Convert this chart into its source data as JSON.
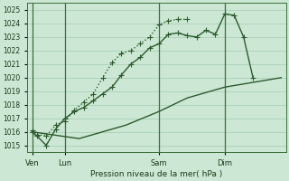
{
  "xlabel": "Pression niveau de la mer( hPa )",
  "ylim": [
    1014.5,
    1025.5
  ],
  "yticks": [
    1015,
    1016,
    1017,
    1018,
    1019,
    1020,
    1021,
    1022,
    1023,
    1024,
    1025
  ],
  "background_color": "#cce8d4",
  "grid_color": "#aacfb8",
  "line_color": "#2d5a2d",
  "vline_color": "#3a6e3a",
  "xtick_labels": [
    "Ven",
    "Lun",
    "Sam",
    "Dim"
  ],
  "xtick_positions": [
    0,
    3.5,
    13.5,
    20.5
  ],
  "xlim": [
    -0.5,
    27.0
  ],
  "line1_x": [
    0,
    0.5,
    1.5,
    2.5,
    3.5,
    4.5,
    5.5,
    6.5,
    7.5,
    8.5,
    9.5,
    10.5,
    11.5,
    12.5,
    13.5,
    14.5,
    15.5,
    16.5
  ],
  "line1_y": [
    1016.1,
    1015.8,
    1015.7,
    1016.5,
    1016.8,
    1017.6,
    1018.2,
    1018.8,
    1020.0,
    1021.1,
    1021.8,
    1022.0,
    1022.5,
    1023.0,
    1023.9,
    1024.2,
    1024.3,
    1024.3
  ],
  "line2_x": [
    0,
    0.5,
    1.5,
    2.5,
    3.5,
    4.5,
    5.5,
    6.5,
    7.5,
    8.5,
    9.5,
    10.5,
    11.5,
    12.5,
    13.5,
    14.5,
    15.5,
    16.5,
    17.5,
    18.5,
    19.5,
    20.5,
    21.5,
    22.5,
    23.5
  ],
  "line2_y": [
    1016.0,
    1015.7,
    1015.0,
    1016.2,
    1017.0,
    1017.5,
    1017.8,
    1018.3,
    1018.8,
    1019.3,
    1020.2,
    1021.0,
    1021.5,
    1022.2,
    1022.5,
    1023.2,
    1023.3,
    1023.1,
    1023.0,
    1023.5,
    1023.2,
    1024.7,
    1024.6,
    1023.0,
    1020.0
  ],
  "line3_x": [
    0,
    5,
    10,
    13.5,
    16.5,
    20.5,
    26.5
  ],
  "line3_y": [
    1016.0,
    1015.5,
    1016.5,
    1017.5,
    1018.5,
    1019.3,
    1020.0
  ],
  "marker_size": 2.5,
  "line_width": 1.0,
  "line1_style": "dotted",
  "line2_style": "solid",
  "line3_style": "solid"
}
